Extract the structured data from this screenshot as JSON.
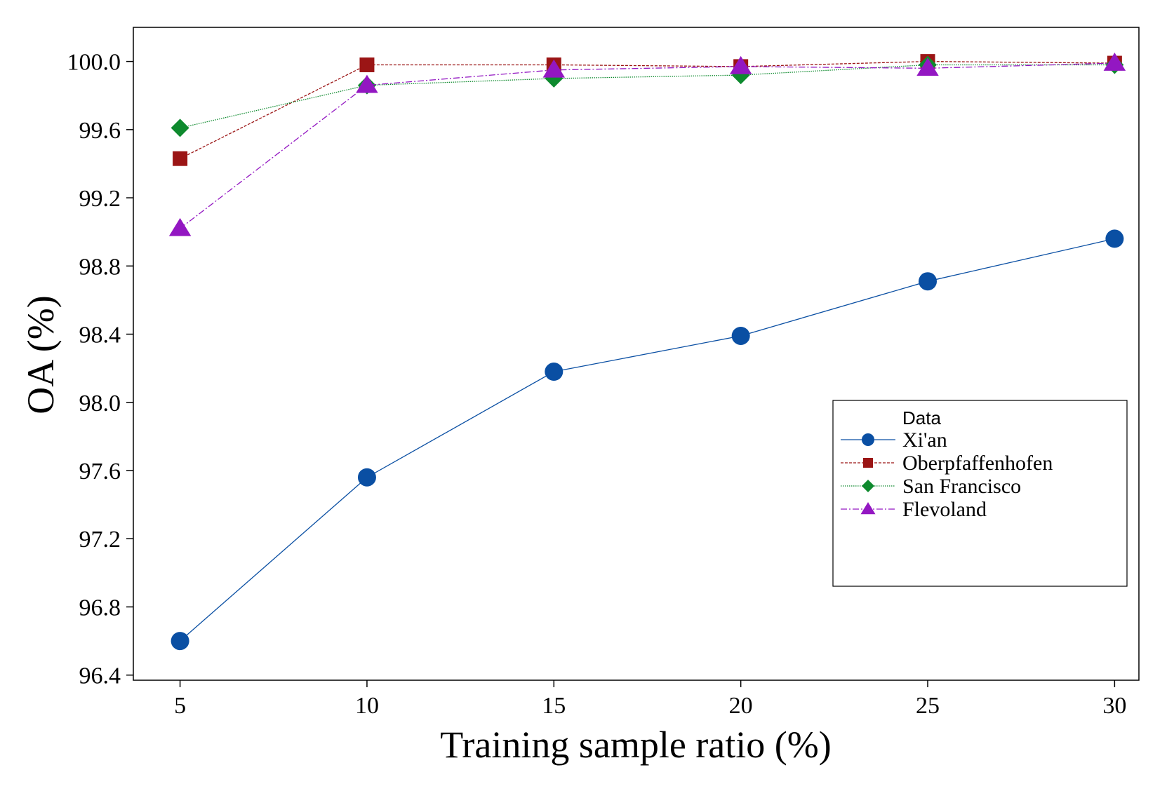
{
  "chart_data": {
    "type": "line",
    "title": "",
    "xlabel": "Training sample ratio (%)",
    "ylabel": "OA (%)",
    "x": [
      5,
      10,
      15,
      20,
      25,
      30
    ],
    "x_tick_labels": [
      "5",
      "10",
      "15",
      "20",
      "25",
      "30"
    ],
    "xlim": [
      3.75,
      30.65
    ],
    "ylim": [
      96.37,
      100.2
    ],
    "y_ticks": [
      96.4,
      96.8,
      97.2,
      97.6,
      98.0,
      98.4,
      98.8,
      99.2,
      99.6,
      100.0
    ],
    "y_tick_labels": [
      "96.4",
      "96.8",
      "97.2",
      "97.6",
      "98.0",
      "98.4",
      "98.8",
      "99.2",
      "99.6",
      "100.0"
    ],
    "grid": false,
    "legend": {
      "title": "Data",
      "position": "right-middle"
    },
    "series": [
      {
        "name": "Xi'an",
        "marker": "circle",
        "line_style": "solid",
        "color": "#0A4FA3",
        "values": [
          96.6,
          97.56,
          98.18,
          98.39,
          98.71,
          98.96
        ]
      },
      {
        "name": "Oberpfaffenhofen",
        "marker": "square",
        "line_style": "dashed",
        "color": "#9B1515",
        "values": [
          99.43,
          99.98,
          99.98,
          99.97,
          100.0,
          99.99
        ]
      },
      {
        "name": "San Francisco",
        "marker": "diamond",
        "line_style": "dotted",
        "color": "#0E8A2E",
        "values": [
          99.61,
          99.86,
          99.9,
          99.92,
          99.98,
          99.98
        ]
      },
      {
        "name": "Flevoland",
        "marker": "triangle",
        "line_style": "dashdot",
        "color": "#9317C2",
        "values": [
          99.02,
          99.86,
          99.95,
          99.97,
          99.96,
          99.99
        ]
      }
    ]
  }
}
